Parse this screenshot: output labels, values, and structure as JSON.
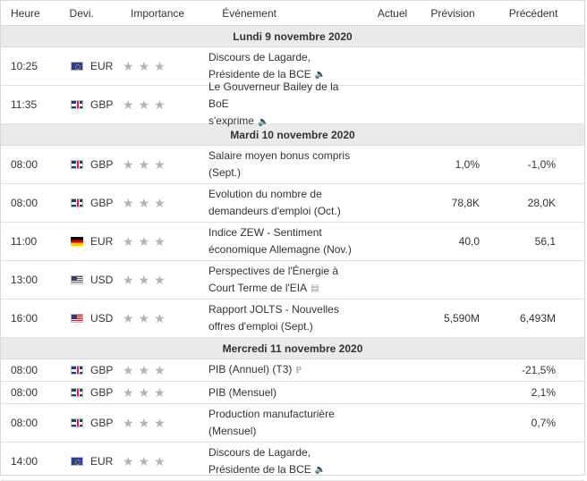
{
  "headers": {
    "time": "Heure",
    "currency": "Devi.",
    "importance": "Importance",
    "event": "Événement",
    "actual": "Actuel",
    "forecast": "Prévision",
    "previous": "Précédent"
  },
  "days": [
    {
      "label": "Lundi 9 novembre 2020",
      "rows": [
        {
          "time": "10:25",
          "cur": "EUR",
          "flag": "eu",
          "line1": "Discours de Lagarde,",
          "line2": "Présidente de la BCE",
          "icon": "speaker",
          "actual": "",
          "forecast": "",
          "previous": ""
        },
        {
          "time": "11:35",
          "cur": "GBP",
          "flag": "gb",
          "line1": "Le Gouverneur Bailey de la BoE",
          "line2": "s'exprime",
          "icon": "speaker",
          "actual": "",
          "forecast": "",
          "previous": ""
        }
      ]
    },
    {
      "label": "Mardi 10 novembre 2020",
      "rows": [
        {
          "time": "08:00",
          "cur": "GBP",
          "flag": "gb",
          "line1": "Salaire moyen bonus compris",
          "line2": "(Sept.)",
          "icon": "",
          "actual": "",
          "forecast": "1,0%",
          "previous": "-1,0%"
        },
        {
          "time": "08:00",
          "cur": "GBP",
          "flag": "gb",
          "line1": "Evolution du nombre de",
          "line2": "demandeurs d'emploi (Oct.)",
          "icon": "",
          "actual": "",
          "forecast": "78,8K",
          "previous": "28,0K"
        },
        {
          "time": "11:00",
          "cur": "EUR",
          "flag": "de",
          "line1": "Indice ZEW - Sentiment",
          "line2": "économique Allemagne (Nov.)",
          "icon": "",
          "actual": "",
          "forecast": "40,0",
          "previous": "56,1"
        },
        {
          "time": "13:00",
          "cur": "USD",
          "flag": "us",
          "line1": "Perspectives de l'Énergie à",
          "line2": "Court Terme de l'EIA",
          "icon": "report",
          "actual": "",
          "forecast": "",
          "previous": ""
        },
        {
          "time": "16:00",
          "cur": "USD",
          "flag": "us",
          "line1": "Rapport JOLTS - Nouvelles",
          "line2": "offres d'emploi (Sept.)",
          "icon": "",
          "actual": "",
          "forecast": "5,590M",
          "previous": "6,493M"
        }
      ]
    },
    {
      "label": "Mercredi 11 novembre 2020",
      "rows": [
        {
          "time": "08:00",
          "cur": "GBP",
          "flag": "gb",
          "line1": "PIB (Annuel) (T3)",
          "line2": "",
          "icon": "preliminary",
          "icon_text": "P",
          "actual": "",
          "forecast": "",
          "previous": "-21,5%"
        },
        {
          "time": "08:00",
          "cur": "GBP",
          "flag": "gb",
          "line1": "PIB (Mensuel)",
          "line2": "",
          "icon": "",
          "actual": "",
          "forecast": "",
          "previous": "2,1%"
        },
        {
          "time": "08:00",
          "cur": "GBP",
          "flag": "gb",
          "line1": "Production manufacturière",
          "line2": "(Mensuel)",
          "icon": "",
          "actual": "",
          "forecast": "",
          "previous": "0,7%"
        },
        {
          "time": "14:00",
          "cur": "EUR",
          "flag": "eu",
          "line1": "Discours de Lagarde,",
          "line2": "Présidente de la BCE",
          "icon": "speaker",
          "actual": "",
          "forecast": "",
          "previous": ""
        }
      ]
    }
  ],
  "importance_stars": 1,
  "colors": {
    "star_inactive": "#b3b3b3",
    "day_bg": "#eaeaea",
    "border": "#d9d9d9"
  }
}
